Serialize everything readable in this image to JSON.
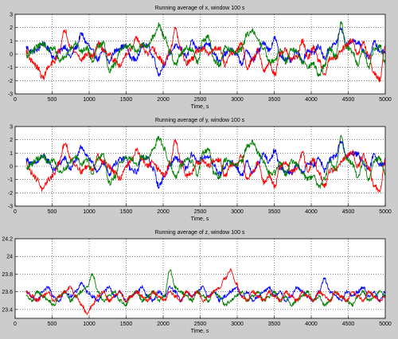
{
  "chart_data": [
    {
      "type": "line",
      "title": "Running average of x, window 100 s",
      "xlabel": "Time, s",
      "ylabel": "",
      "xlim": [
        0,
        5000
      ],
      "ylim": [
        -3,
        3
      ],
      "xticks": [
        0,
        500,
        1000,
        1500,
        2000,
        2500,
        3000,
        3500,
        4000,
        4500,
        5000
      ],
      "yticks": [
        -3,
        -2,
        -1,
        0,
        1,
        2,
        3
      ],
      "grid": true,
      "x_start": 150,
      "x_end": 5000,
      "noise": 0.07,
      "series": [
        {
          "color": "#0000ff",
          "values": [
            0.5,
            0.2,
            0.3,
            0.8,
            0.4,
            -0.3,
            0.2,
            0.6,
            -0.2,
            0.5,
            1.5,
            0.8,
            0.2,
            -0.4,
            0.3,
            -0.6,
            0.2,
            0.5,
            0.6,
            -0.3,
            -0.4,
            0.7,
            0.6,
            -0.2,
            -1.5,
            -0.8,
            0.1,
            0.6,
            0.4,
            -0.2,
            0.9,
            0.4,
            0.6,
            0.8,
            0.1,
            -0.6,
            0.0,
            0.4,
            0.0,
            -0.7,
            0.3,
            -0.5,
            0.2,
            0.9,
            0.3,
            1.2,
            -0.1,
            -0.4,
            -0.5,
            0.2,
            -0.5,
            0.3,
            0.1,
            0.6,
            -0.3,
            0.5,
            0.8,
            1.9,
            0.7,
            1.0,
            0.9,
            0.3,
            -0.3,
            0.9,
            0.2,
            0.2
          ]
        },
        {
          "color": "#ff0000",
          "values": [
            0.2,
            -0.5,
            -1.0,
            -1.8,
            -1.0,
            -0.6,
            0.3,
            1.8,
            0.6,
            0.1,
            -0.4,
            0.0,
            -0.2,
            0.8,
            0.3,
            0.0,
            -0.5,
            -0.9,
            0.0,
            0.4,
            1.2,
            0.5,
            0.0,
            0.4,
            -0.3,
            -0.7,
            0.2,
            1.9,
            0.3,
            -0.7,
            -0.4,
            0.3,
            0.4,
            0.0,
            0.4,
            0.5,
            -0.8,
            0.1,
            0.2,
            0.8,
            -1.0,
            -0.4,
            0.3,
            -1.2,
            -0.7,
            -1.5,
            0.0,
            0.3,
            -0.4,
            -0.2,
            1.0,
            -0.3,
            0.5,
            -0.5,
            -1.5,
            -0.3,
            -0.3,
            0.3,
            0.7,
            1.1,
            0.0,
            0.8,
            -0.1,
            -1.5,
            -1.9,
            0.6
          ]
        },
        {
          "color": "#008000",
          "values": [
            -0.2,
            0.2,
            0.6,
            0.8,
            0.3,
            0.5,
            -0.5,
            -0.2,
            0.4,
            0.8,
            0.2,
            0.5,
            -0.5,
            0.6,
            0.8,
            -1.3,
            -0.8,
            0.3,
            0.6,
            0.6,
            0.2,
            0.7,
            0.6,
            1.3,
            2.2,
            1.3,
            0.2,
            -0.8,
            0.0,
            0.5,
            0.3,
            -0.6,
            1.0,
            1.3,
            -0.5,
            -0.8,
            0.5,
            0.3,
            0.1,
            0.4,
            1.5,
            1.8,
            1.0,
            0.4,
            -0.5,
            -0.5,
            0.3,
            -0.6,
            0.4,
            0.2,
            -0.6,
            -1.0,
            -0.7,
            -1.6,
            -0.9,
            0.4,
            -0.2,
            2.3,
            0.5,
            0.2,
            -0.8,
            0.3,
            -1.0,
            0.4,
            0.6,
            -0.6
          ]
        }
      ]
    },
    {
      "type": "line",
      "title": "Running average of y, window 100 s",
      "xlabel": "Time, s",
      "ylabel": "",
      "xlim": [
        0,
        5000
      ],
      "ylim": [
        -3,
        3
      ],
      "xticks": [
        0,
        500,
        1000,
        1500,
        2000,
        2500,
        3000,
        3500,
        4000,
        4500,
        5000
      ],
      "yticks": [
        -3,
        -2,
        -1,
        0,
        1,
        2,
        3
      ],
      "grid": true,
      "x_start": 150,
      "x_end": 5000,
      "noise": 0.07,
      "series": [
        {
          "color": "#0000ff",
          "values": [
            0.5,
            0.2,
            0.3,
            0.8,
            0.4,
            -0.3,
            0.2,
            0.6,
            -0.2,
            0.5,
            1.5,
            0.8,
            0.2,
            -0.4,
            0.3,
            -0.6,
            0.2,
            0.5,
            0.6,
            -0.3,
            -0.4,
            0.7,
            0.6,
            -0.2,
            -1.5,
            -0.8,
            0.1,
            0.6,
            0.4,
            -0.2,
            0.9,
            0.4,
            0.6,
            0.8,
            0.1,
            -0.6,
            0.0,
            0.4,
            0.0,
            -0.7,
            0.3,
            -0.5,
            0.2,
            0.9,
            0.3,
            1.2,
            -0.1,
            -0.4,
            -0.5,
            0.2,
            -0.5,
            0.3,
            0.1,
            0.6,
            -0.3,
            0.5,
            0.8,
            1.9,
            0.7,
            1.0,
            0.9,
            0.3,
            -0.3,
            0.9,
            0.2,
            0.2
          ]
        },
        {
          "color": "#ff0000",
          "values": [
            0.2,
            -0.5,
            -1.0,
            -1.8,
            -1.0,
            -0.6,
            0.3,
            1.8,
            0.6,
            0.1,
            -0.4,
            0.0,
            -0.2,
            0.8,
            0.3,
            0.0,
            -0.5,
            -0.9,
            0.0,
            0.4,
            1.2,
            0.5,
            0.0,
            0.4,
            -0.3,
            -0.7,
            0.2,
            1.9,
            0.3,
            -0.7,
            -0.4,
            0.3,
            0.4,
            0.0,
            0.4,
            0.5,
            -0.8,
            0.1,
            0.2,
            0.8,
            -1.0,
            -0.4,
            0.3,
            -1.2,
            -0.7,
            -1.5,
            0.0,
            0.3,
            -0.4,
            -0.2,
            1.0,
            -0.3,
            0.5,
            -0.5,
            -1.5,
            -0.3,
            -0.3,
            0.3,
            0.7,
            1.1,
            0.0,
            0.8,
            -0.1,
            -1.5,
            -1.9,
            0.6
          ]
        },
        {
          "color": "#008000",
          "values": [
            -0.2,
            0.2,
            0.6,
            0.8,
            0.3,
            0.5,
            -0.5,
            -0.2,
            0.4,
            0.8,
            0.2,
            0.5,
            -0.5,
            0.6,
            0.8,
            -1.3,
            -0.8,
            0.3,
            0.6,
            0.6,
            0.2,
            0.7,
            0.6,
            1.3,
            2.2,
            1.3,
            0.2,
            -0.8,
            0.0,
            0.5,
            0.3,
            -0.6,
            1.0,
            1.3,
            -0.5,
            -0.8,
            0.5,
            0.3,
            0.1,
            0.4,
            1.5,
            1.8,
            1.0,
            0.4,
            -0.5,
            -0.5,
            0.3,
            -0.6,
            0.4,
            0.2,
            -0.6,
            -1.0,
            -0.7,
            -1.6,
            -0.9,
            0.4,
            -0.2,
            2.3,
            0.5,
            0.2,
            -0.8,
            0.3,
            -1.0,
            0.4,
            0.6,
            -0.6
          ]
        }
      ]
    },
    {
      "type": "line",
      "title": "Running average of z, window 100 s",
      "xlabel": "Time, s",
      "ylabel": "",
      "xlim": [
        0,
        5000
      ],
      "ylim": [
        23.3,
        24.2
      ],
      "xticks": [
        0,
        500,
        1000,
        1500,
        2000,
        2500,
        3000,
        3500,
        4000,
        4500,
        5000
      ],
      "yticks": [
        23.4,
        23.6,
        23.8,
        24,
        24.2
      ],
      "grid": true,
      "x_start": 150,
      "x_end": 5000,
      "noise": 0.045,
      "series": [
        {
          "color": "#0000ff",
          "values": [
            23.6,
            23.55,
            23.5,
            23.6,
            23.65,
            23.55,
            23.5,
            23.6,
            23.55,
            23.6,
            23.7,
            23.6,
            23.55,
            23.5,
            23.6,
            23.65,
            23.55,
            23.6,
            23.5,
            23.55,
            23.6,
            23.65,
            23.55,
            23.5,
            23.6,
            23.55,
            23.65,
            23.6,
            23.5,
            23.6,
            23.55,
            23.6,
            23.65,
            23.55,
            23.6,
            23.5,
            23.55,
            23.6,
            23.65,
            23.55,
            23.6,
            23.5,
            23.55,
            23.6,
            23.65,
            23.55,
            23.6,
            23.5,
            23.55,
            23.65,
            23.6,
            23.55,
            23.5,
            23.6,
            23.75,
            23.6,
            23.55,
            23.5,
            23.6,
            23.55,
            23.6,
            23.65,
            23.55,
            23.6,
            23.5,
            23.6
          ]
        },
        {
          "color": "#008000",
          "values": [
            23.55,
            23.5,
            23.6,
            23.55,
            23.5,
            23.45,
            23.55,
            23.6,
            23.5,
            23.55,
            23.6,
            23.65,
            23.8,
            23.6,
            23.5,
            23.55,
            23.6,
            23.5,
            23.45,
            23.55,
            23.6,
            23.5,
            23.55,
            23.6,
            23.5,
            23.55,
            23.85,
            23.65,
            23.6,
            23.55,
            23.5,
            23.6,
            23.55,
            23.5,
            23.6,
            23.55,
            23.45,
            23.5,
            23.55,
            23.6,
            23.5,
            23.55,
            23.6,
            23.5,
            23.55,
            23.6,
            23.5,
            23.55,
            23.45,
            23.5,
            23.55,
            23.6,
            23.5,
            23.55,
            23.45,
            23.5,
            23.6,
            23.55,
            23.5,
            23.45,
            23.55,
            23.6,
            23.5,
            23.55,
            23.6,
            23.55
          ]
        },
        {
          "color": "#ff0000",
          "values": [
            23.6,
            23.55,
            23.5,
            23.55,
            23.6,
            23.5,
            23.55,
            23.6,
            23.65,
            23.55,
            23.45,
            23.35,
            23.45,
            23.55,
            23.6,
            23.5,
            23.55,
            23.6,
            23.5,
            23.55,
            23.6,
            23.55,
            23.5,
            23.6,
            23.55,
            23.5,
            23.6,
            23.55,
            23.5,
            23.6,
            23.55,
            23.6,
            23.5,
            23.55,
            23.6,
            23.65,
            23.75,
            23.85,
            23.7,
            23.55,
            23.5,
            23.6,
            23.55,
            23.5,
            23.6,
            23.55,
            23.5,
            23.6,
            23.55,
            23.5,
            23.6,
            23.55,
            23.5,
            23.6,
            23.55,
            23.5,
            23.6,
            23.55,
            23.5,
            23.6,
            23.55,
            23.5,
            23.6,
            23.55,
            23.5,
            23.55
          ]
        }
      ]
    }
  ]
}
